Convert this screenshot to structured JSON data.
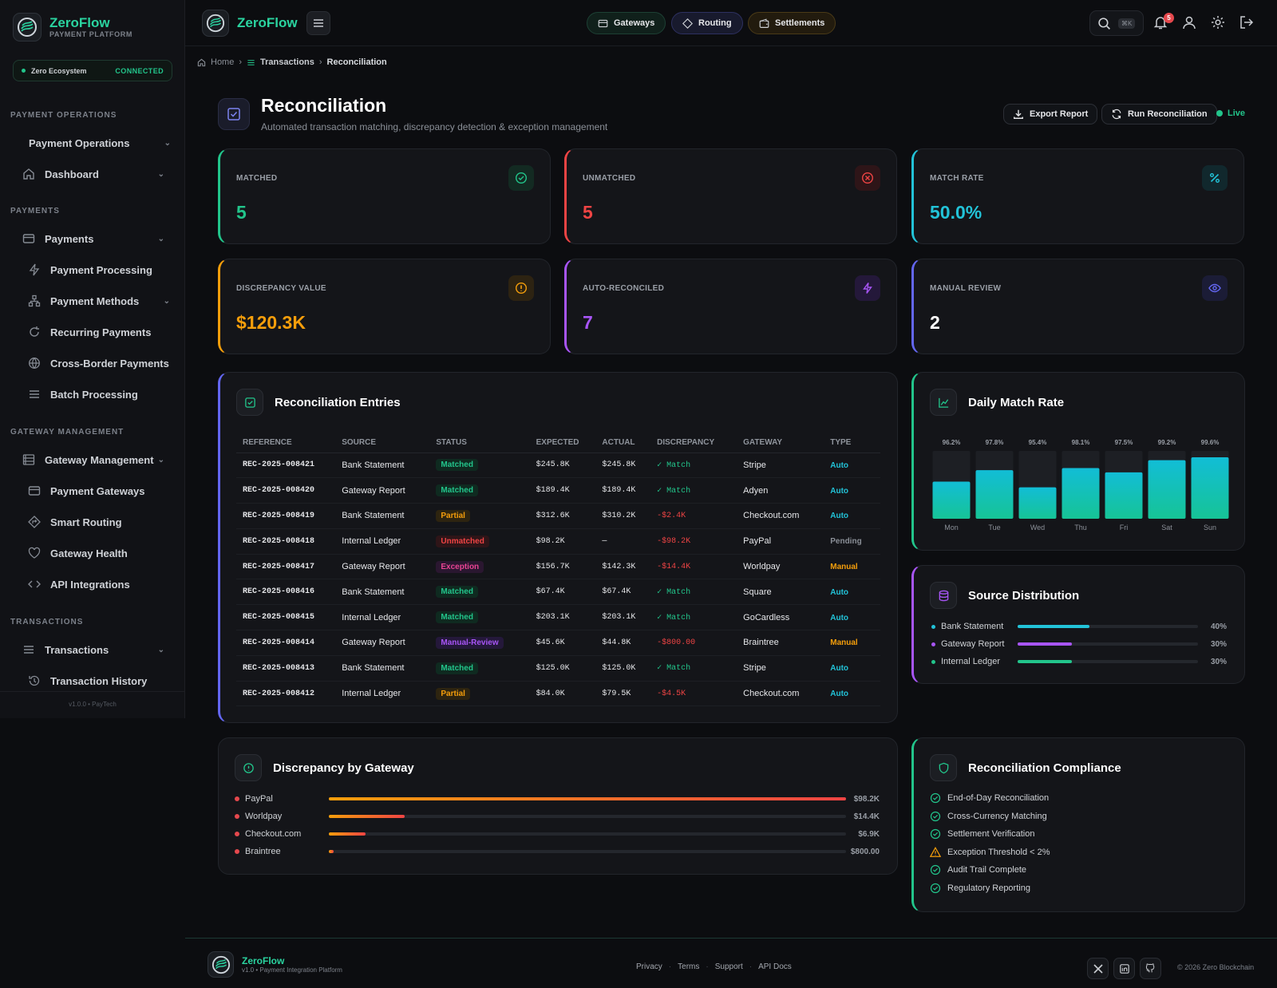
{
  "brand": {
    "name": "ZeroFlow",
    "subtitle": "PAYMENT PLATFORM"
  },
  "ecosystem": {
    "name": "Zero Ecosystem",
    "status": "CONNECTED"
  },
  "sidebar": {
    "sections": [
      {
        "label": "PAYMENT OPERATIONS"
      },
      {
        "label": "PAYMENTS"
      },
      {
        "label": "GATEWAY MANAGEMENT"
      },
      {
        "label": "TRANSACTIONS"
      }
    ],
    "items": [
      {
        "label": "Payment Operations",
        "icon": "none",
        "chevron": true
      },
      {
        "label": "Dashboard",
        "icon": "home-icon",
        "chevron": true
      },
      {
        "label": "Payments",
        "icon": "credit-card-icon",
        "chevron": true
      },
      {
        "label": "Payment Processing",
        "icon": "bolt-icon",
        "chevron": false
      },
      {
        "label": "Payment Methods",
        "icon": "network-icon",
        "chevron": true
      },
      {
        "label": "Recurring Payments",
        "icon": "refresh-icon",
        "chevron": false
      },
      {
        "label": "Cross-Border Payments",
        "icon": "globe-icon",
        "chevron": false
      },
      {
        "label": "Batch Processing",
        "icon": "list-icon",
        "chevron": false
      },
      {
        "label": "Gateway Management",
        "icon": "server-icon",
        "chevron": true
      },
      {
        "label": "Payment Gateways",
        "icon": "card-icon",
        "chevron": false
      },
      {
        "label": "Smart Routing",
        "icon": "route-icon",
        "chevron": false
      },
      {
        "label": "Gateway Health",
        "icon": "heart-icon",
        "chevron": false
      },
      {
        "label": "API Integrations",
        "icon": "code-icon",
        "chevron": false
      },
      {
        "label": "Transactions",
        "icon": "list-icon",
        "chevron": true
      },
      {
        "label": "Transaction History",
        "icon": "history-icon",
        "chevron": false
      }
    ],
    "version": "v1.0.0  •  PayTech"
  },
  "header": {
    "pills": [
      {
        "label": "Gateways",
        "color": "#22c58b"
      },
      {
        "label": "Routing",
        "color": "#7c83f0"
      },
      {
        "label": "Settlements",
        "color": "#f59e0b"
      }
    ],
    "search_shortcut": "⌘K",
    "notification_count": "5"
  },
  "breadcrumb": {
    "home": "Home",
    "section": "Transactions",
    "current": "Reconciliation"
  },
  "page": {
    "title": "Reconciliation",
    "subtitle": "Automated transaction matching, discrepancy detection & exception management",
    "export_label": "Export Report",
    "run_label": "Run Reconciliation",
    "live_label": "Live"
  },
  "stats": [
    {
      "label": "MATCHED",
      "value": "5",
      "color": "#22c58b",
      "icon": "check-circle-icon"
    },
    {
      "label": "UNMATCHED",
      "value": "5",
      "color": "#ef4444",
      "icon": "x-circle-icon"
    },
    {
      "label": "MATCH RATE",
      "value": "50.0%",
      "color": "#22c3d8",
      "icon": "percent-icon"
    },
    {
      "label": "DISCREPANCY VALUE",
      "value": "$120.3K",
      "color": "#f59e0b",
      "icon": "alert-circle-icon"
    },
    {
      "label": "AUTO-RECONCILED",
      "value": "7",
      "color": "#a855f7",
      "icon": "bolt-icon"
    },
    {
      "label": "MANUAL REVIEW",
      "value": "2",
      "color": "#6366f1",
      "icon": "eye-icon"
    }
  ],
  "entries": {
    "title": "Reconciliation Entries",
    "columns": [
      "REFERENCE",
      "SOURCE",
      "STATUS",
      "EXPECTED",
      "ACTUAL",
      "DISCREPANCY",
      "GATEWAY",
      "TYPE"
    ],
    "rows": [
      {
        "ref": "REC-2025-008421",
        "source": "Bank Statement",
        "status": "Matched",
        "expected": "$245.8K",
        "actual": "$245.8K",
        "discrepancy": "✓ Match",
        "gateway": "Stripe",
        "type": "Auto"
      },
      {
        "ref": "REC-2025-008420",
        "source": "Gateway Report",
        "status": "Matched",
        "expected": "$189.4K",
        "actual": "$189.4K",
        "discrepancy": "✓ Match",
        "gateway": "Adyen",
        "type": "Auto"
      },
      {
        "ref": "REC-2025-008419",
        "source": "Bank Statement",
        "status": "Partial",
        "expected": "$312.6K",
        "actual": "$310.2K",
        "discrepancy": "-$2.4K",
        "gateway": "Checkout.com",
        "type": "Auto"
      },
      {
        "ref": "REC-2025-008418",
        "source": "Internal Ledger",
        "status": "Unmatched",
        "expected": "$98.2K",
        "actual": "—",
        "discrepancy": "-$98.2K",
        "gateway": "PayPal",
        "type": "Pending"
      },
      {
        "ref": "REC-2025-008417",
        "source": "Gateway Report",
        "status": "Exception",
        "expected": "$156.7K",
        "actual": "$142.3K",
        "discrepancy": "-$14.4K",
        "gateway": "Worldpay",
        "type": "Manual"
      },
      {
        "ref": "REC-2025-008416",
        "source": "Bank Statement",
        "status": "Matched",
        "expected": "$67.4K",
        "actual": "$67.4K",
        "discrepancy": "✓ Match",
        "gateway": "Square",
        "type": "Auto"
      },
      {
        "ref": "REC-2025-008415",
        "source": "Internal Ledger",
        "status": "Matched",
        "expected": "$203.1K",
        "actual": "$203.1K",
        "discrepancy": "✓ Match",
        "gateway": "GoCardless",
        "type": "Auto"
      },
      {
        "ref": "REC-2025-008414",
        "source": "Gateway Report",
        "status": "Manual-Review",
        "expected": "$45.6K",
        "actual": "$44.8K",
        "discrepancy": "-$800.00",
        "gateway": "Braintree",
        "type": "Manual"
      },
      {
        "ref": "REC-2025-008413",
        "source": "Bank Statement",
        "status": "Matched",
        "expected": "$125.0K",
        "actual": "$125.0K",
        "discrepancy": "✓ Match",
        "gateway": "Stripe",
        "type": "Auto"
      },
      {
        "ref": "REC-2025-008412",
        "source": "Internal Ledger",
        "status": "Partial",
        "expected": "$84.0K",
        "actual": "$79.5K",
        "discrepancy": "-$4.5K",
        "gateway": "Checkout.com",
        "type": "Auto"
      }
    ]
  },
  "daily_match_rate": {
    "title": "Daily Match Rate"
  },
  "chart_data": {
    "type": "bar",
    "categories": [
      "Mon",
      "Tue",
      "Wed",
      "Thu",
      "Fri",
      "Sat",
      "Sun"
    ],
    "values": [
      96.2,
      97.8,
      95.4,
      98.1,
      97.5,
      99.2,
      99.6
    ],
    "labels": [
      "96.2%",
      "97.8%",
      "95.4%",
      "98.1%",
      "97.5%",
      "99.2%",
      "99.6%"
    ],
    "ylim": [
      91,
      100.5
    ],
    "title": "Daily Match Rate",
    "grid": false
  },
  "source_distribution": {
    "title": "Source Distribution",
    "items": [
      {
        "label": "Bank Statement",
        "pct": "40%",
        "value": 0.4,
        "color": "#22c3d8"
      },
      {
        "label": "Gateway Report",
        "pct": "30%",
        "value": 0.3,
        "color": "#a855f7"
      },
      {
        "label": "Internal Ledger",
        "pct": "30%",
        "value": 0.3,
        "color": "#22c58b"
      }
    ]
  },
  "discrepancy_by_gateway": {
    "title": "Discrepancy by Gateway",
    "items": [
      {
        "label": "PayPal",
        "amount": "$98.2K",
        "value": 98200
      },
      {
        "label": "Worldpay",
        "amount": "$14.4K",
        "value": 14400
      },
      {
        "label": "Checkout.com",
        "amount": "$6.9K",
        "value": 6900
      },
      {
        "label": "Braintree",
        "amount": "$800.00",
        "value": 800
      }
    ]
  },
  "compliance": {
    "title": "Reconciliation Compliance",
    "items": [
      {
        "label": "End-of-Day Reconciliation",
        "state": "ok"
      },
      {
        "label": "Cross-Currency Matching",
        "state": "ok"
      },
      {
        "label": "Settlement Verification",
        "state": "ok"
      },
      {
        "label": "Exception Threshold < 2%",
        "state": "warn"
      },
      {
        "label": "Audit Trail Complete",
        "state": "ok"
      },
      {
        "label": "Regulatory Reporting",
        "state": "ok"
      }
    ]
  },
  "footer": {
    "name": "ZeroFlow",
    "subtitle": "v1.0 • Payment Integration Platform",
    "links": [
      "Privacy",
      "Terms",
      "Support",
      "API Docs"
    ],
    "copyright": "© 2026 Zero Blockchain"
  }
}
